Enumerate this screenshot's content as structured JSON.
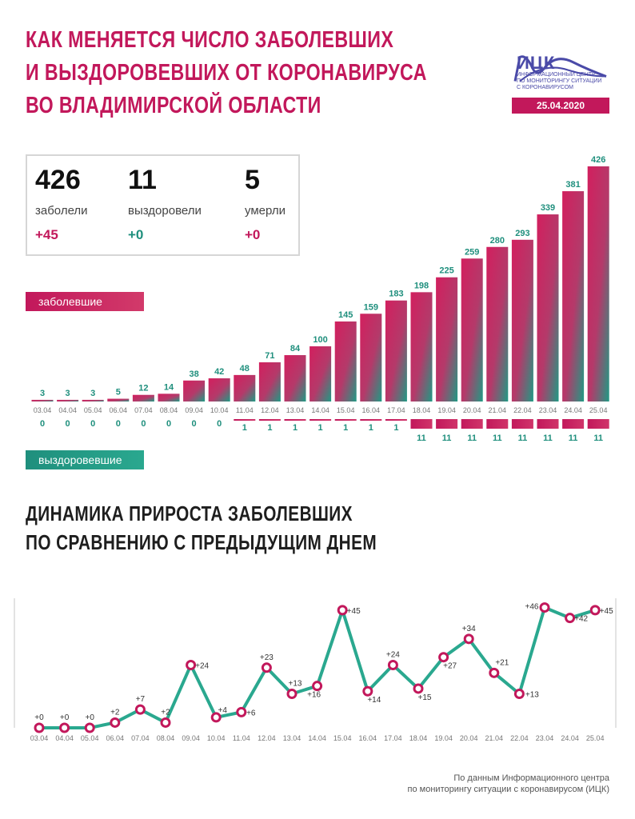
{
  "header": {
    "title_lines": [
      "КАК МЕНЯЕТСЯ ЧИСЛО ЗАБОЛЕВШИХ",
      "И ВЫЗДОРОВЕВШИХ ОТ КОРОНАВИРУСА",
      "ВО ВЛАДИМИРСКОЙ ОБЛАСТИ"
    ]
  },
  "logo": {
    "name": "ИЦК",
    "subtitle_lines": [
      "ИНФОРМАЦИОННЫЙ ЦЕНТР",
      "ПО МОНИТОРИНГУ СИТУАЦИИ",
      "С КОРОНАВИРУСОМ"
    ],
    "date": "25.04.2020"
  },
  "stats": {
    "cases": {
      "value": "426",
      "label": "заболели",
      "delta": "+45"
    },
    "recovered": {
      "value": "11",
      "label": "выздоровели",
      "delta": "+0"
    },
    "deaths": {
      "value": "5",
      "label": "умерли",
      "delta": "+0"
    }
  },
  "legend": {
    "cases_label": "заболевшие",
    "recovered_label": "выздоровевшие"
  },
  "section2": {
    "title_lines": [
      "ДИНАМИКА ПРИРОСТА ЗАБОЛЕВШИХ",
      "ПО СРАВНЕНИЮ С ПРЕДЫДУЩИМ ДНЕМ"
    ]
  },
  "footnote": {
    "lines": [
      "По данным Информационного центра",
      "по мониторингу ситуации с коронавирусом (ИЦК)"
    ]
  },
  "colors": {
    "pink": "#c2185b",
    "teal": "#1f8f7d",
    "line": "#2aa88f"
  },
  "chart_data": [
    {
      "type": "bar",
      "categories": [
        "03.04",
        "04.04",
        "05.04",
        "06.04",
        "07.04",
        "08.04",
        "09.04",
        "10.04",
        "11.04",
        "12.04",
        "13.04",
        "14.04",
        "15.04",
        "16.04",
        "17.04",
        "18.04",
        "19.04",
        "20.04",
        "21.04",
        "22.04",
        "23.04",
        "24.04",
        "25.04"
      ],
      "series": [
        {
          "name": "заболевшие",
          "values": [
            3,
            3,
            3,
            5,
            12,
            14,
            38,
            42,
            48,
            71,
            84,
            100,
            145,
            159,
            183,
            198,
            225,
            259,
            280,
            293,
            339,
            381,
            426
          ]
        },
        {
          "name": "выздоровевшие",
          "values": [
            0,
            0,
            0,
            0,
            0,
            0,
            0,
            0,
            1,
            1,
            1,
            1,
            1,
            1,
            1,
            11,
            11,
            11,
            11,
            11,
            11,
            11,
            11
          ]
        }
      ]
    },
    {
      "type": "line",
      "x": [
        "03.04",
        "04.04",
        "05.04",
        "06.04",
        "07.04",
        "08.04",
        "09.04",
        "10.04",
        "11.04",
        "12.04",
        "13.04",
        "14.04",
        "15.04",
        "16.04",
        "17.04",
        "18.04",
        "19.04",
        "20.04",
        "21.04",
        "22.04",
        "23.04",
        "24.04",
        "25.04"
      ],
      "values": [
        0,
        0,
        0,
        2,
        7,
        2,
        24,
        4,
        6,
        23,
        13,
        16,
        45,
        14,
        24,
        15,
        27,
        34,
        21,
        13,
        46,
        42,
        45
      ],
      "labels": [
        "+0",
        "+0",
        "+0",
        "+2",
        "+7",
        "+2",
        "+24",
        "+4",
        "+6",
        "+23",
        "+13",
        "+16",
        "+45",
        "+14",
        "+24",
        "+15",
        "+27",
        "+34",
        "+21",
        "+13",
        "+46",
        "+42",
        "+45"
      ]
    }
  ]
}
